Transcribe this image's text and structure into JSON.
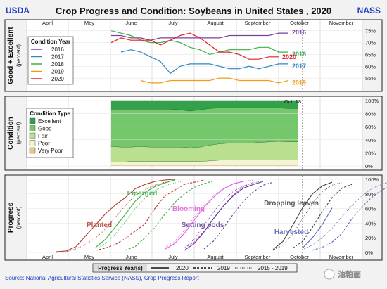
{
  "header": {
    "left_logo": "USDA",
    "title": "Crop Progress and Condition: Soybeans in United States , 2020",
    "right_logo": "NASS"
  },
  "months": [
    "April",
    "May",
    "June",
    "July",
    "August",
    "September",
    "October",
    "November"
  ],
  "footer": {
    "source": "Source: National Agricultural Statistics Service (NASS), Crop Progress Report",
    "legend_title": "Progress Year(s)",
    "legend_items": [
      {
        "label": "2020",
        "style": "solid"
      },
      {
        "label": "2019",
        "style": "dashed"
      },
      {
        "label": "2015 - 2019",
        "style": "dotted"
      }
    ],
    "watermark": "油粕面"
  },
  "colors": {
    "y2016": "#7b3fa0",
    "y2017": "#2e86c1",
    "y2018": "#3cb043",
    "y2019": "#f39c12",
    "y2020": "#e0202a",
    "excellent": "#33a04a",
    "good": "#74c76a",
    "fair": "#b8e08f",
    "poor": "#f3f3d6",
    "very_poor": "#e8c87a",
    "planted": "#b03a2e",
    "emerged": "#3cb043",
    "blooming": "#e05ce0",
    "setting_pods": "#5b3f96",
    "dropping_leaves": "#404040",
    "harvested": "#5565c0",
    "header_blue": "#1f3fbf"
  },
  "chart_data": [
    {
      "type": "line",
      "ylabel": "Good + Excellent",
      "yunit": "(percent)",
      "ylim": [
        50,
        77
      ],
      "yticks": [
        "75%",
        "70%",
        "65%",
        "60%",
        "55%"
      ],
      "legend": {
        "title": "Condition Year",
        "placement": "top-left"
      },
      "x_unit": "week index (week 0 = first week of June)",
      "series": [
        {
          "name": "2016",
          "x": [
            0,
            1,
            2,
            3,
            4,
            5,
            6,
            7,
            8,
            9,
            10,
            11,
            12,
            13,
            14,
            15,
            16,
            17,
            18
          ],
          "values": [
            73,
            73,
            72,
            72,
            71,
            72,
            72,
            72,
            72,
            72,
            72,
            72,
            73,
            73,
            73,
            73,
            73,
            74,
            74
          ],
          "end_label": "2016"
        },
        {
          "name": "2017",
          "x": [
            1,
            2,
            3,
            4,
            5,
            6,
            7,
            8,
            9,
            10,
            11,
            12,
            13,
            14,
            15,
            16,
            17,
            18
          ],
          "values": [
            66,
            67,
            66,
            64,
            62,
            57,
            60,
            61,
            61,
            61,
            60,
            59,
            59,
            60,
            59,
            60,
            61,
            61
          ],
          "end_label": "2017"
        },
        {
          "name": "2018",
          "x": [
            0,
            1,
            2,
            3,
            4,
            5,
            6,
            7,
            8,
            9,
            10,
            11,
            12,
            13,
            14,
            15,
            16,
            17,
            18
          ],
          "values": [
            75,
            74,
            73,
            71,
            70,
            70,
            71,
            70,
            68,
            67,
            65,
            66,
            67,
            67,
            67,
            68,
            68,
            66,
            66
          ],
          "end_label": "2018"
        },
        {
          "name": "2019",
          "x": [
            3,
            4,
            5,
            6,
            7,
            8,
            9,
            10,
            11,
            12,
            13,
            14,
            15,
            16,
            17,
            18
          ],
          "values": [
            54,
            53,
            53,
            54,
            54,
            54,
            54,
            54,
            55,
            55,
            54,
            54,
            54,
            54,
            53,
            54
          ],
          "end_label": "2019"
        },
        {
          "name": "2020",
          "x": [
            0,
            1,
            2,
            3,
            4,
            5,
            6,
            7,
            8,
            9,
            10,
            11,
            12,
            13,
            14,
            15,
            16,
            17
          ],
          "values": [
            70,
            72,
            71,
            71,
            71,
            69,
            71,
            73,
            74,
            72,
            69,
            66,
            66,
            65,
            63,
            63,
            64,
            64
          ],
          "end_label": "2020"
        }
      ]
    },
    {
      "type": "area",
      "ylabel": "Condition",
      "yunit": "(percent)",
      "ylim": [
        0,
        100
      ],
      "yticks": [
        "100%",
        "80%",
        "60%",
        "40%",
        "20%",
        "0%"
      ],
      "legend": {
        "title": "Condition Type",
        "placement": "top-left"
      },
      "annotation": "Oct. 18",
      "x_unit": "week index (week 0 = first week of June)",
      "x": [
        0,
        1,
        2,
        3,
        4,
        5,
        6,
        7,
        8,
        9,
        10,
        11,
        12,
        13,
        14,
        15,
        16,
        17,
        18,
        19
      ],
      "series": [
        {
          "name": "Very Poor",
          "values": [
            2,
            2,
            2,
            2,
            2,
            2,
            2,
            2,
            2,
            2,
            2,
            2,
            2,
            2,
            2,
            2,
            2,
            2,
            2,
            2
          ]
        },
        {
          "name": "Poor",
          "values": [
            4,
            4,
            5,
            5,
            5,
            5,
            5,
            5,
            5,
            5,
            6,
            7,
            7,
            7,
            7,
            7,
            7,
            7,
            7,
            7
          ]
        },
        {
          "name": "Fair",
          "values": [
            24,
            23,
            22,
            23,
            22,
            22,
            22,
            22,
            21,
            22,
            24,
            25,
            26,
            26,
            26,
            27,
            28,
            29,
            28,
            28
          ]
        },
        {
          "name": "Good",
          "values": [
            57,
            58,
            58,
            57,
            58,
            58,
            58,
            57,
            56,
            57,
            56,
            55,
            54,
            54,
            54,
            53,
            52,
            51,
            51,
            51
          ]
        },
        {
          "name": "Excellent",
          "values": [
            13,
            13,
            13,
            13,
            13,
            13,
            13,
            14,
            16,
            14,
            12,
            11,
            11,
            11,
            11,
            11,
            11,
            11,
            12,
            12
          ]
        }
      ]
    },
    {
      "type": "line",
      "ylabel": "Progress",
      "yunit": "(percent)",
      "ylim": [
        0,
        100
      ],
      "yticks": [
        "100%",
        "80%",
        "60%",
        "40%",
        "20%",
        "0%"
      ],
      "x_unit": "week index (week 0 = first week of April)",
      "stages": [
        {
          "name": "Planted",
          "label": "Planted",
          "color_key": "planted",
          "series": [
            {
              "year": "2020",
              "x": [
                0,
                1,
                2,
                3,
                4,
                5,
                6,
                7,
                8,
                9,
                10,
                11,
                12
              ],
              "values": [
                1,
                2,
                8,
                23,
                38,
                53,
                65,
                75,
                87,
                93,
                97,
                99,
                100
              ]
            },
            {
              "year": "2019",
              "x": [
                4,
                5,
                6,
                7,
                8,
                9,
                10,
                11,
                12,
                13,
                14,
                15
              ],
              "values": [
                3,
                6,
                11,
                19,
                29,
                39,
                60,
                77,
                85,
                93,
                96,
                99
              ]
            },
            {
              "year": "2015 - 2019",
              "x": [
                0,
                1,
                2,
                3,
                4,
                5,
                6,
                7,
                8,
                9,
                10,
                11,
                12
              ],
              "values": [
                0,
                1,
                5,
                11,
                20,
                32,
                48,
                64,
                78,
                86,
                92,
                96,
                99
              ]
            }
          ]
        },
        {
          "name": "Emerged",
          "label": "Emerged",
          "color_key": "emerged",
          "series": [
            {
              "year": "2020",
              "x": [
                4,
                5,
                6,
                7,
                8,
                9,
                10,
                11,
                12
              ],
              "values": [
                7,
                18,
                35,
                52,
                70,
                82,
                90,
                95,
                99
              ]
            },
            {
              "year": "2019",
              "x": [
                7,
                8,
                9,
                10,
                11,
                12,
                13,
                14,
                15,
                16
              ],
              "values": [
                3,
                8,
                20,
                34,
                52,
                68,
                80,
                89,
                94,
                98
              ]
            },
            {
              "year": "2015 - 2019",
              "x": [
                4,
                5,
                6,
                7,
                8,
                9,
                10,
                11,
                12,
                13
              ],
              "values": [
                5,
                12,
                25,
                42,
                60,
                74,
                85,
                91,
                95,
                98
              ]
            }
          ]
        },
        {
          "name": "Blooming",
          "label": "Blooming",
          "color_key": "blooming",
          "series": [
            {
              "year": "2020",
              "x": [
                11,
                12,
                13,
                14,
                15,
                16,
                17,
                18,
                19
              ],
              "values": [
                4,
                12,
                26,
                44,
                62,
                76,
                87,
                94,
                97
              ]
            },
            {
              "year": "2019",
              "x": [
                13,
                14,
                15,
                16,
                17,
                18,
                19,
                20
              ],
              "values": [
                6,
                14,
                29,
                47,
                64,
                79,
                90,
                96
              ]
            },
            {
              "year": "2015 - 2019",
              "x": [
                11,
                12,
                13,
                14,
                15,
                16,
                17,
                18,
                19,
                20
              ],
              "values": [
                6,
                15,
                30,
                48,
                64,
                78,
                88,
                94,
                97,
                99
              ]
            }
          ]
        },
        {
          "name": "Setting pods",
          "label": "Setting pods",
          "color_key": "setting_pods",
          "series": [
            {
              "year": "2020",
              "x": [
                13,
                14,
                15,
                16,
                17,
                18,
                19,
                20,
                21
              ],
              "values": [
                3,
                12,
                28,
                47,
                64,
                78,
                88,
                93,
                97
              ]
            },
            {
              "year": "2019",
              "x": [
                15,
                16,
                17,
                18,
                19,
                20,
                21,
                22
              ],
              "values": [
                5,
                16,
                34,
                53,
                70,
                83,
                92,
                96
              ]
            },
            {
              "year": "2015 - 2019",
              "x": [
                13,
                14,
                15,
                16,
                17,
                18,
                19,
                20,
                21
              ],
              "values": [
                6,
                18,
                37,
                56,
                72,
                84,
                91,
                95,
                98
              ]
            }
          ]
        },
        {
          "name": "Dropping leaves",
          "label": "Dropping leaves",
          "color_key": "dropping_leaves",
          "series": [
            {
              "year": "2020",
              "x": [
                22,
                23,
                24,
                25,
                26,
                27,
                28
              ],
              "values": [
                4,
                15,
                37,
                61,
                80,
                91,
                96
              ]
            },
            {
              "year": "2019",
              "x": [
                24,
                25,
                26,
                27,
                28,
                29,
                30
              ],
              "values": [
                6,
                15,
                34,
                56,
                75,
                88,
                93
              ]
            },
            {
              "year": "2015 - 2019",
              "x": [
                22,
                23,
                24,
                25,
                26,
                27,
                28,
                29
              ],
              "values": [
                3,
                10,
                25,
                46,
                67,
                83,
                92,
                96
              ]
            }
          ]
        },
        {
          "name": "Harvested",
          "label": "Harvested",
          "color_key": "harvested",
          "series": [
            {
              "year": "2020",
              "x": [
                25,
                26,
                27,
                28
              ],
              "values": [
                6,
                20,
                38,
                61
              ]
            },
            {
              "year": "2019",
              "x": [
                26,
                27,
                28,
                29,
                30,
                31,
                32,
                33,
                34
              ],
              "values": [
                3,
                7,
                14,
                26,
                46,
                62,
                75,
                85,
                91
              ]
            },
            {
              "year": "2015 - 2019",
              "x": [
                25,
                26,
                27,
                28,
                29,
                30,
                31,
                32,
                33,
                34
              ],
              "values": [
                4,
                10,
                20,
                33,
                49,
                64,
                77,
                87,
                93,
                97
              ]
            }
          ]
        }
      ]
    }
  ]
}
